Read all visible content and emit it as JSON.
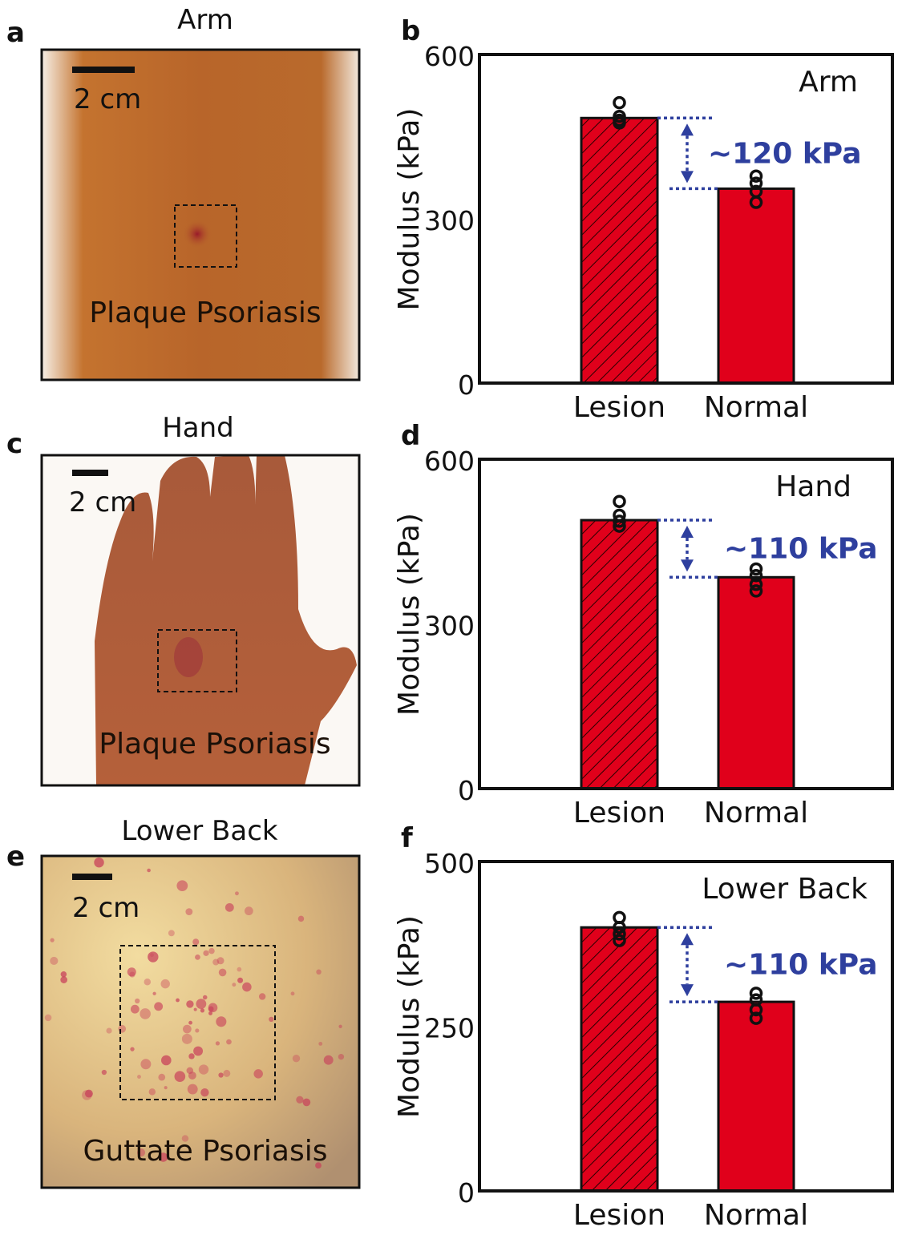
{
  "panels": [
    {
      "letter": "a",
      "title": "Arm",
      "scale_label": "2 cm",
      "caption": "Plaque Psoriasis"
    },
    {
      "letter": "c",
      "title": "Hand",
      "scale_label": "2 cm",
      "caption": "Plaque Psoriasis"
    },
    {
      "letter": "e",
      "title": "Lower Back",
      "scale_label": "2 cm",
      "caption": "Guttate Psoriasis"
    }
  ],
  "colors": {
    "bar": "#e0001b",
    "annotation": "#2e3f9e",
    "hatch": "#1a0000"
  },
  "chart_data": [
    {
      "letter": "b",
      "type": "bar",
      "title": "Arm",
      "ylabel": "Modulus (kPa)",
      "ylim": [
        0,
        600
      ],
      "yticks": [
        0,
        300,
        600
      ],
      "categories": [
        "Lesion",
        "Normal"
      ],
      "values": [
        484,
        355
      ],
      "points": [
        [
          512,
          487,
          480,
          475
        ],
        [
          378,
          365,
          350,
          330
        ]
      ],
      "annotation": "~120 kPa",
      "hatched": [
        "Lesion"
      ]
    },
    {
      "letter": "d",
      "type": "bar",
      "title": "Hand",
      "ylabel": "Modulus (kPa)",
      "ylim": [
        0,
        600
      ],
      "yticks": [
        0,
        300,
        600
      ],
      "categories": [
        "Lesion",
        "Normal"
      ],
      "values": [
        489,
        385
      ],
      "points": [
        [
          523,
          498,
          487,
          478
        ],
        [
          400,
          388,
          372,
          360
        ]
      ],
      "annotation": "~110 kPa",
      "hatched": [
        "Lesion"
      ]
    },
    {
      "letter": "f",
      "type": "bar",
      "title": "Lower Back",
      "ylabel": "Modulus (kPa)",
      "ylim": [
        0,
        500
      ],
      "yticks": [
        0,
        250,
        500
      ],
      "categories": [
        "Lesion",
        "Normal"
      ],
      "values": [
        400,
        287
      ],
      "points": [
        [
          415,
          400,
          390,
          380
        ],
        [
          300,
          290,
          275,
          262
        ]
      ],
      "annotation": "~110 kPa",
      "hatched": [
        "Lesion"
      ]
    }
  ]
}
